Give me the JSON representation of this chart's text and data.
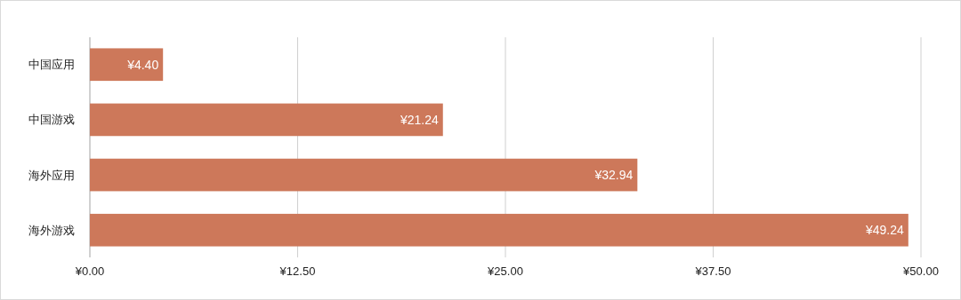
{
  "chart_data": {
    "type": "bar",
    "orientation": "horizontal",
    "categories": [
      "中国应用",
      "中国游戏",
      "海外应用",
      "海外游戏"
    ],
    "values": [
      4.4,
      21.24,
      32.94,
      49.24
    ],
    "value_labels": [
      "¥4.40",
      "¥21.24",
      "¥32.94",
      "¥49.24"
    ],
    "color": "#cd785a",
    "xlim": [
      0,
      50
    ],
    "xticks": [
      {
        "value": 0,
        "label": "¥0.00"
      },
      {
        "value": 12.5,
        "label": "¥12.50"
      },
      {
        "value": 25,
        "label": "¥25.00"
      },
      {
        "value": 37.5,
        "label": "¥37.50"
      },
      {
        "value": 50,
        "label": "¥50.00"
      }
    ],
    "grid": "x"
  }
}
